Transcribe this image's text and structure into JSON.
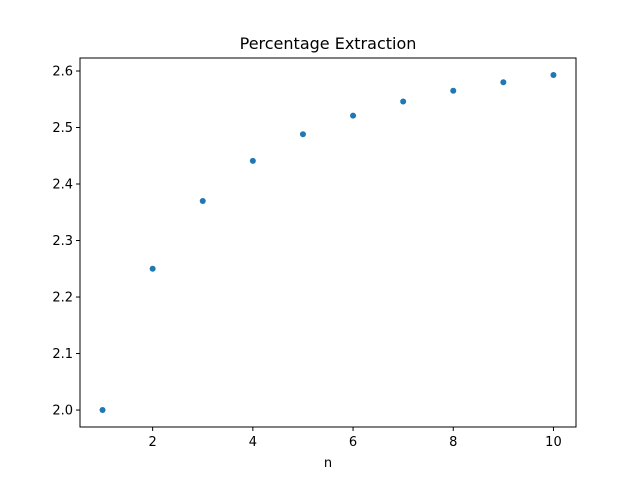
{
  "chart_data": {
    "type": "scatter",
    "title": "Percentage Extraction",
    "xlabel": "n",
    "ylabel": "",
    "x": [
      1,
      2,
      3,
      4,
      5,
      6,
      7,
      8,
      9,
      10
    ],
    "y": [
      2.0,
      2.25,
      2.37,
      2.441,
      2.488,
      2.521,
      2.546,
      2.565,
      2.58,
      2.593
    ],
    "xlim": [
      0.55,
      10.45
    ],
    "ylim": [
      1.97,
      2.623
    ],
    "xticks": [
      2,
      4,
      6,
      8,
      10
    ],
    "xtick_labels": [
      "2",
      "4",
      "6",
      "8",
      "10"
    ],
    "yticks": [
      2.0,
      2.1,
      2.2,
      2.3,
      2.4,
      2.5,
      2.6
    ],
    "ytick_labels": [
      "2.0",
      "2.1",
      "2.2",
      "2.3",
      "2.4",
      "2.5",
      "2.6"
    ],
    "grid": false,
    "legend": "none",
    "marker_color": "#1f77b4"
  }
}
